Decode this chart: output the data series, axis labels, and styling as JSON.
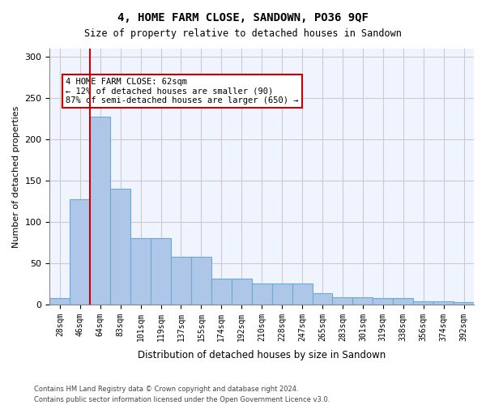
{
  "title1": "4, HOME FARM CLOSE, SANDOWN, PO36 9QF",
  "title2": "Size of property relative to detached houses in Sandown",
  "xlabel": "Distribution of detached houses by size in Sandown",
  "ylabel": "Number of detached properties",
  "categories": [
    "28sqm",
    "46sqm",
    "64sqm",
    "83sqm",
    "101sqm",
    "119sqm",
    "137sqm",
    "155sqm",
    "174sqm",
    "192sqm",
    "210sqm",
    "228sqm",
    "247sqm",
    "265sqm",
    "283sqm",
    "301sqm",
    "319sqm",
    "338sqm",
    "356sqm",
    "374sqm",
    "392sqm"
  ],
  "values": [
    8,
    127,
    228,
    140,
    80,
    80,
    58,
    58,
    31,
    31,
    25,
    25,
    25,
    14,
    9,
    9,
    8,
    8,
    4,
    4,
    3
  ],
  "bar_color": "#aec6e8",
  "bar_edge_color": "#6aaad4",
  "vline_x": 1.5,
  "vline_color": "#cc0000",
  "annotation_text": "4 HOME FARM CLOSE: 62sqm\n← 12% of detached houses are smaller (90)\n87% of semi-detached houses are larger (650) →",
  "annotation_box_color": "#ffffff",
  "annotation_box_edgecolor": "#cc0000",
  "footnote1": "Contains HM Land Registry data © Crown copyright and database right 2024.",
  "footnote2": "Contains public sector information licensed under the Open Government Licence v3.0.",
  "ylim": [
    0,
    310
  ],
  "yticks": [
    0,
    50,
    100,
    150,
    200,
    250,
    300
  ],
  "grid_color": "#cccccc",
  "bg_color": "#f0f4ff"
}
